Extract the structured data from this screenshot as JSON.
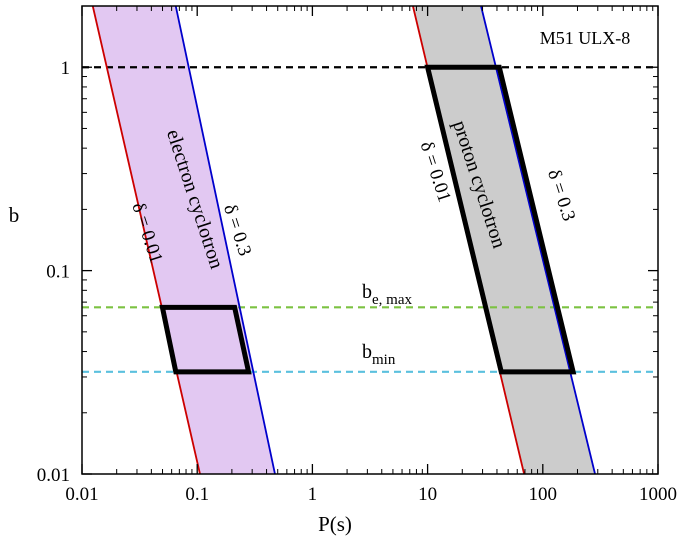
{
  "chart_data": {
    "type": "line",
    "title": "",
    "xlabel": "P(s)",
    "ylabel": "b",
    "xscale": "log",
    "yscale": "log",
    "xlim": [
      0.01,
      1000
    ],
    "ylim": [
      0.01,
      2
    ],
    "x_ticks": [
      "0.01",
      "0.1",
      "1",
      "10",
      "100",
      "1000"
    ],
    "y_ticks": [
      "0.01",
      "0.1",
      "1"
    ],
    "legend": "M51 ULX-8",
    "series": [
      {
        "name": "",
        "group": "electron",
        "role": "δ = 0.01",
        "color": "#cc0000",
        "x": [
          0.0124,
          0.1057
        ],
        "y": [
          2,
          0.01
        ]
      },
      {
        "name": "",
        "group": "electron",
        "role": "δ = 0.3",
        "color": "#0000cc",
        "x": [
          0.0651,
          0.4734
        ],
        "y": [
          2,
          0.01
        ]
      },
      {
        "name": "",
        "group": "proton",
        "role": "δ = 0.01",
        "color": "#cc0000",
        "x": [
          7.456,
          68.82
        ],
        "y": [
          2,
          0.01
        ]
      },
      {
        "name": "",
        "group": "proton",
        "role": "δ = 0.3",
        "color": "#0000cc",
        "x": [
          29.09,
          284.1
        ],
        "y": [
          2,
          0.01
        ]
      }
    ],
    "bands": [
      {
        "label": "electron cyclotron",
        "fill": "#e2c8f2"
      },
      {
        "label": "proton cyclotron",
        "fill": "#cccccc"
      }
    ],
    "hlines": [
      {
        "label": "",
        "y": 1.0,
        "color": "#000000"
      },
      {
        "label": "b",
        "sub": "e, max",
        "y": 0.066,
        "color": "#7cc242"
      },
      {
        "label": "b",
        "sub": "min",
        "y": 0.0318,
        "color": "#5bc0de"
      }
    ],
    "boxes": [
      {
        "group": "electron",
        "b_range": [
          0.0318,
          0.066
        ],
        "corners_x": [
          0.0499,
          0.2113,
          0.2792,
          0.0652
        ]
      },
      {
        "group": "proton",
        "b_range": [
          0.0318,
          1.0
        ],
        "corners_x": [
          10.0,
          41.9,
          183.4,
          43.6
        ]
      }
    ],
    "annotations": [
      {
        "text": "δ = 0.01",
        "x": 0.033,
        "y": 0.15,
        "angle": 72
      },
      {
        "text": "δ = 0.3",
        "x": 0.2,
        "y": 0.155,
        "angle": 72
      },
      {
        "text": "δ = 0.01",
        "x": 10.5,
        "y": 0.3,
        "angle": 72
      },
      {
        "text": "δ = 0.3",
        "x": 130,
        "y": 0.23,
        "angle": 72
      },
      {
        "text": "electron cyclotron",
        "x": 0.085,
        "y": 0.22,
        "angle": 72
      },
      {
        "text": "proton cyclotron",
        "x": 25,
        "y": 0.26,
        "angle": 72
      }
    ],
    "grid": false
  }
}
